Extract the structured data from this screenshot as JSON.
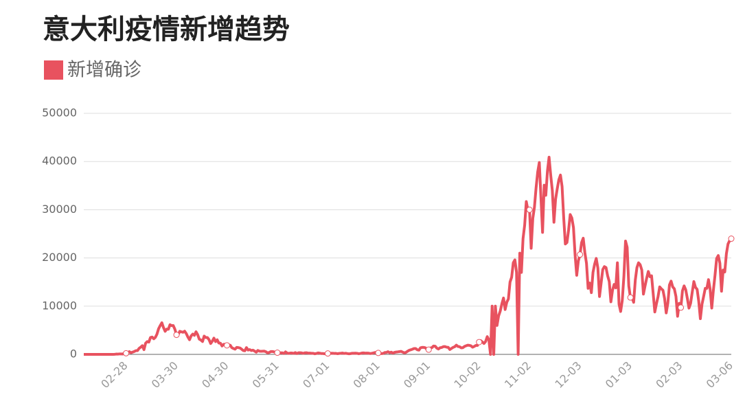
{
  "chart_data": {
    "type": "line",
    "title": "意大利疫情新增趋势",
    "categories": [
      null,
      null,
      null,
      null,
      null,
      null,
      null,
      null,
      null,
      null,
      null,
      null,
      null,
      null,
      null,
      null,
      null,
      null,
      null,
      null,
      null,
      null,
      null,
      null,
      null,
      null,
      "02-28",
      null,
      null,
      null,
      null,
      null,
      null,
      null,
      null,
      null,
      null,
      null,
      null,
      null,
      null,
      null,
      null,
      null,
      null,
      null,
      null,
      null,
      null,
      null,
      null,
      null,
      null,
      null,
      null,
      null,
      null,
      "03-30",
      null,
      null,
      null,
      null,
      null,
      null,
      null,
      null,
      null,
      null,
      null,
      null,
      null,
      null,
      null,
      null,
      null,
      null,
      null,
      null,
      null,
      null,
      null,
      null,
      null,
      null,
      null,
      null,
      null,
      null,
      "04-30",
      null,
      null,
      null,
      null,
      null,
      null,
      null,
      null,
      null,
      null,
      null,
      null,
      null,
      null,
      null,
      null,
      null,
      null,
      null,
      null,
      null,
      null,
      null,
      null,
      null,
      null,
      null,
      null,
      null,
      null,
      "05-31",
      null,
      null,
      null,
      null,
      null,
      null,
      null,
      null,
      null,
      null,
      null,
      null,
      null,
      null,
      null,
      null,
      null,
      null,
      null,
      null,
      null,
      null,
      null,
      null,
      null,
      null,
      null,
      null,
      null,
      null,
      "07-01",
      null,
      null,
      null,
      null,
      null,
      null,
      null,
      null,
      null,
      null,
      null,
      null,
      null,
      null,
      null,
      null,
      null,
      null,
      null,
      null,
      null,
      null,
      null,
      null,
      null,
      null,
      null,
      null,
      null,
      null,
      "08-01",
      null,
      null,
      null,
      null,
      null,
      null,
      null,
      null,
      null,
      null,
      null,
      null,
      null,
      null,
      null,
      null,
      null,
      null,
      null,
      null,
      null,
      null,
      null,
      null,
      null,
      null,
      null,
      null,
      null,
      null,
      "09-01",
      null,
      null,
      null,
      null,
      null,
      null,
      null,
      null,
      null,
      null,
      null,
      null,
      null,
      null,
      null,
      null,
      null,
      null,
      null,
      null,
      null,
      null,
      null,
      null,
      null,
      null,
      null,
      null,
      null,
      null,
      "10-02",
      null,
      null,
      null,
      null,
      null,
      null,
      null,
      null,
      null,
      null,
      null,
      null,
      null,
      null,
      null,
      null,
      null,
      null,
      null,
      null,
      null,
      null,
      null,
      null,
      null,
      null,
      null,
      null,
      null,
      null,
      "11-02",
      null,
      null,
      null,
      null,
      null,
      null,
      null,
      null,
      null,
      null,
      null,
      null,
      null,
      null,
      null,
      null,
      null,
      null,
      null,
      null,
      null,
      null,
      null,
      null,
      null,
      null,
      null,
      null,
      null,
      null,
      "12-03",
      null,
      null,
      null,
      null,
      null,
      null,
      null,
      null,
      null,
      null,
      null,
      null,
      null,
      null,
      null,
      null,
      null,
      null,
      null,
      null,
      null,
      null,
      null,
      null,
      null,
      null,
      null,
      null,
      null,
      null,
      "01-03",
      null,
      null,
      null,
      null,
      null,
      null,
      null,
      null,
      null,
      null,
      null,
      null,
      null,
      null,
      null,
      null,
      null,
      null,
      null,
      null,
      null,
      null,
      null,
      null,
      null,
      null,
      null,
      null,
      null,
      null,
      "02-03",
      null,
      null,
      null,
      null,
      null,
      null,
      null,
      null,
      null,
      null,
      null,
      null,
      null,
      null,
      null,
      null,
      null,
      null,
      null,
      null,
      null,
      null,
      null,
      null,
      null,
      null,
      null,
      null,
      null,
      null,
      "03-06"
    ],
    "series": [
      {
        "name": "新增确诊",
        "color": "#e8525f",
        "values": [
          0,
          0,
          0,
          0,
          0,
          0,
          0,
          0,
          0,
          0,
          0,
          0,
          0,
          0,
          0,
          0,
          0,
          0,
          0,
          17,
          62,
          53,
          97,
          93,
          78,
          250,
          238,
          240,
          566,
          342,
          466,
          587,
          769,
          778,
          1247,
          1492,
          1797,
          977,
          2313,
          2651,
          2547,
          3497,
          3590,
          3233,
          3526,
          4207,
          5322,
          5986,
          6557,
          5560,
          4789,
          5249,
          5210,
          6153,
          5959,
          5974,
          5217,
          4050,
          4053,
          4782,
          4668,
          4585,
          4805,
          4316,
          3599,
          3039,
          3836,
          4204,
          3951,
          4694,
          4092,
          3153,
          2972,
          2667,
          3786,
          3493,
          3491,
          3047,
          2256,
          2729,
          3370,
          2646,
          3021,
          2357,
          2324,
          1739,
          2091,
          2086,
          1872,
          1965,
          1900,
          1389,
          1221,
          1075,
          1444,
          1401,
          1327,
          1083,
          802,
          744,
          1402,
          888,
          992,
          789,
          875,
          675,
          451,
          813,
          665,
          642,
          652,
          669,
          531,
          300,
          397,
          584,
          593,
          516,
          416,
          355,
          178,
          318,
          321,
          177,
          518,
          270,
          197,
          280,
          283,
          202,
          379,
          163,
          346,
          338,
          301,
          210,
          329,
          333,
          251,
          262,
          224,
          218,
          122,
          190,
          296,
          259,
          175,
          174,
          126,
          142,
          187,
          201,
          223,
          235,
          192,
          208,
          138,
          193,
          229,
          276,
          188,
          234,
          169,
          114,
          163,
          230,
          233,
          249,
          219,
          129,
          190,
          280,
          306,
          252,
          275,
          255,
          170,
          212,
          289,
          386,
          379,
          295,
          239,
          159,
          190,
          384,
          402,
          552,
          347,
          463,
          259,
          412,
          481,
          523,
          574,
          629,
          479,
          320,
          403,
          642,
          845,
          947,
          1071,
          1210,
          1210,
          953,
          878,
          1367,
          1460,
          1444,
          1365,
          996,
          978,
          1326,
          1397,
          1733,
          1695,
          1297,
          1108,
          1370,
          1434,
          1597,
          1616,
          1501,
          1458,
          1008,
          1229,
          1452,
          1585,
          1907,
          1638,
          1587,
          1350,
          1392,
          1640,
          1786,
          1912,
          1869,
          1766,
          1494,
          1648,
          1851,
          1851,
          2548,
          2844,
          2578,
          2257,
          2677,
          3678,
          3000,
          0,
          10000,
          0,
          10000,
          6000,
          8000,
          9000,
          10500,
          11700,
          9300,
          10800,
          11500,
          15000,
          16000,
          19000,
          19600,
          17000,
          0,
          21000,
          17000,
          24000,
          26800,
          31700,
          29900,
          30000,
          22000,
          28200,
          30500,
          34500,
          37800,
          39800,
          32600,
          25300,
          35100,
          33000,
          38000,
          40900,
          37200,
          34000,
          27400,
          32200,
          34300,
          36200,
          37200,
          34800,
          28300,
          22900,
          23200,
          25800,
          29000,
          28300,
          26300,
          20600,
          16400,
          19400,
          20700,
          23200,
          24100,
          21100,
          18900,
          13700,
          14800,
          12800,
          17000,
          18700,
          19900,
          17900,
          12000,
          14800,
          17600,
          18200,
          18000,
          16300,
          15100,
          10900,
          13300,
          14500,
          13800,
          19000,
          10400,
          8900,
          11200,
          16200,
          23500,
          22200,
          14200,
          11800,
          11800,
          10800,
          15400,
          18000,
          19000,
          18600,
          17500,
          12500,
          14200,
          15800,
          17200,
          16100,
          16300,
          12600,
          8800,
          10500,
          12000,
          14000,
          13600,
          13300,
          11600,
          8600,
          10600,
          14400,
          15200,
          14000,
          13600,
          12000,
          7900,
          10600,
          9700,
          13200,
          14200,
          13400,
          11600,
          9600,
          10600,
          12900,
          15100,
          13900,
          13500,
          11000,
          7400,
          10400,
          12000,
          13700,
          13700,
          15500,
          13500,
          9600,
          13300,
          16400,
          19900,
          20500,
          18900,
          13100,
          17500,
          17100,
          20900,
          22900,
          23600,
          24000
        ]
      }
    ],
    "ylim": [
      0,
      50000
    ],
    "yticks": [
      0,
      10000,
      20000,
      30000,
      40000,
      50000
    ],
    "grid": true
  }
}
